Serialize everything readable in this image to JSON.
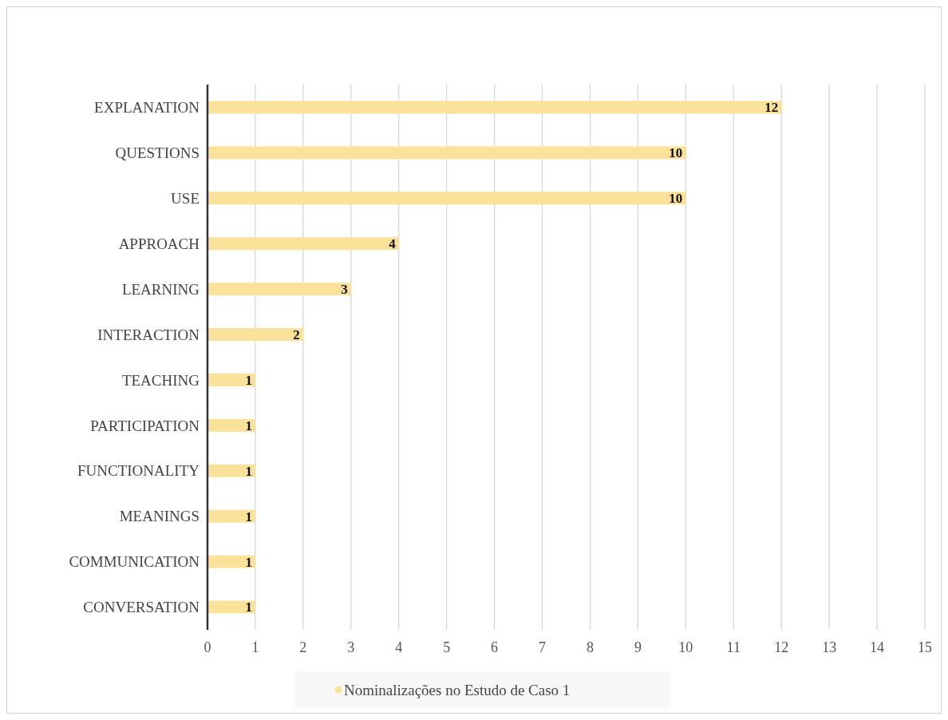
{
  "chart_data": {
    "type": "bar",
    "orientation": "horizontal",
    "categories": [
      "EXPLANATION",
      "QUESTIONS",
      "USE",
      "APPROACH",
      "LEARNING",
      "INTERACTION",
      "TEACHING",
      "PARTICIPATION",
      "FUNCTIONALITY",
      "MEANINGS",
      "COMMUNICATION",
      "CONVERSATION"
    ],
    "series": [
      {
        "name": "Nominalizações no Estudo de Caso 1",
        "color": "#fbe29a",
        "values": [
          12,
          10,
          10,
          4,
          3,
          2,
          1,
          1,
          1,
          1,
          1,
          1
        ]
      }
    ],
    "xlim": [
      0,
      15
    ],
    "xticks": [
      0,
      1,
      2,
      3,
      4,
      5,
      6,
      7,
      8,
      9,
      10,
      11,
      12,
      13,
      14,
      15
    ],
    "grid": "x",
    "legend": "bottom",
    "data_labels": true
  }
}
